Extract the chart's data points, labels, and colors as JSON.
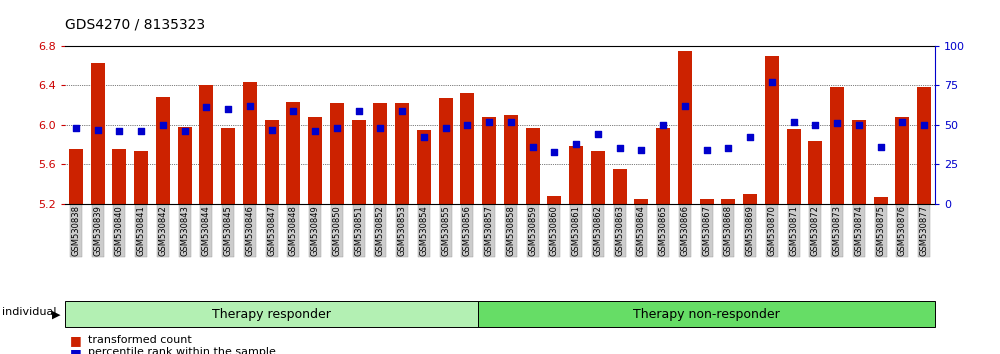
{
  "title": "GDS4270 / 8135323",
  "samples": [
    "GSM530838",
    "GSM530839",
    "GSM530840",
    "GSM530841",
    "GSM530842",
    "GSM530843",
    "GSM530844",
    "GSM530845",
    "GSM530846",
    "GSM530847",
    "GSM530848",
    "GSM530849",
    "GSM530850",
    "GSM530851",
    "GSM530852",
    "GSM530853",
    "GSM530854",
    "GSM530855",
    "GSM530856",
    "GSM530857",
    "GSM530858",
    "GSM530859",
    "GSM530860",
    "GSM530861",
    "GSM530862",
    "GSM530863",
    "GSM530864",
    "GSM530865",
    "GSM530866",
    "GSM530867",
    "GSM530868",
    "GSM530869",
    "GSM530870",
    "GSM530871",
    "GSM530872",
    "GSM530873",
    "GSM530874",
    "GSM530875",
    "GSM530876",
    "GSM530877"
  ],
  "bar_values": [
    5.75,
    6.63,
    5.75,
    5.73,
    6.28,
    5.98,
    6.4,
    5.97,
    6.43,
    6.05,
    6.23,
    6.08,
    6.22,
    6.05,
    6.22,
    6.22,
    5.95,
    6.27,
    6.32,
    6.08,
    6.1,
    5.97,
    5.28,
    5.78,
    5.73,
    5.55,
    5.25,
    5.97,
    6.75,
    5.25,
    5.25,
    5.3,
    6.7,
    5.96,
    5.84,
    6.38,
    6.05,
    5.27,
    6.08,
    6.38
  ],
  "percentile_values": [
    48,
    47,
    46,
    46,
    50,
    46,
    61,
    60,
    62,
    47,
    59,
    46,
    48,
    59,
    48,
    59,
    42,
    48,
    50,
    52,
    52,
    36,
    33,
    38,
    44,
    35,
    34,
    50,
    62,
    34,
    35,
    42,
    77,
    52,
    50,
    51,
    50,
    36,
    52,
    50
  ],
  "n_responder": 19,
  "n_nonresponder": 21,
  "group_labels": [
    "Therapy responder",
    "Therapy non-responder"
  ],
  "group_color_responder": "#b3f0b3",
  "group_color_nonresponder": "#66dd66",
  "bar_color": "#cc2200",
  "dot_color": "#0000cc",
  "ymin": 5.2,
  "ymax": 6.8,
  "yticks": [
    5.2,
    5.6,
    6.0,
    6.4,
    6.8
  ],
  "right_yticks": [
    0,
    25,
    50,
    75,
    100
  ],
  "axis_color_left": "#cc0000",
  "axis_color_right": "#0000cc",
  "legend_bar_label": "transformed count",
  "legend_dot_label": "percentile rank within the sample",
  "individual_label": "individual"
}
